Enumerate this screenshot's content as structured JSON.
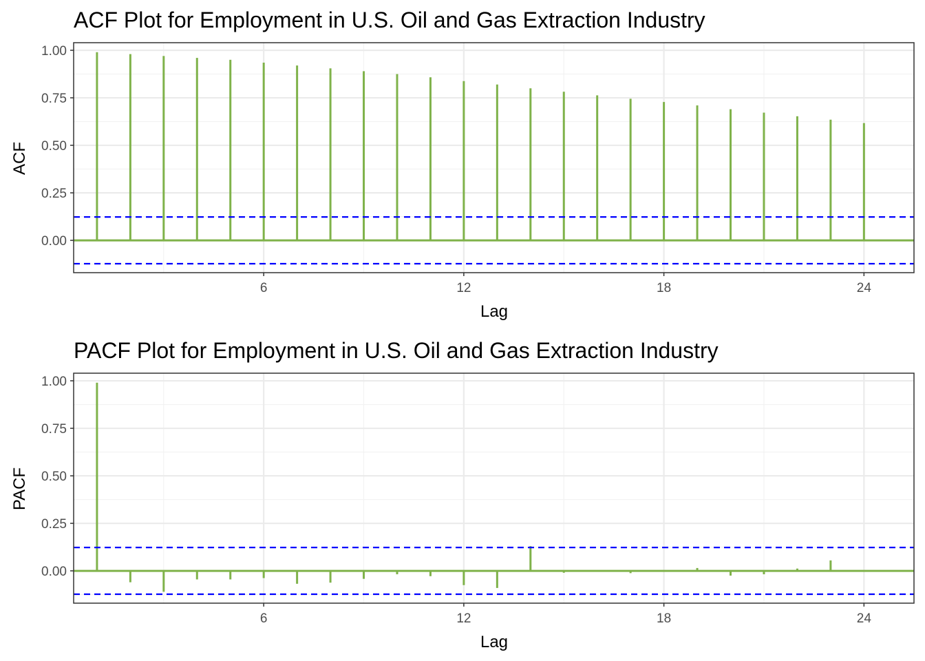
{
  "colors": {
    "bar": "#7fb24a",
    "confidence": "#0000ff",
    "grid_major": "#ebebeb",
    "grid_minor": "#f2f2f2",
    "panel_border": "#333333",
    "background": "#ffffff"
  },
  "chart_data": [
    {
      "type": "bar",
      "title": "ACF Plot for Employment in U.S. Oil and Gas Extraction Industry",
      "xlabel": "Lag",
      "ylabel": "ACF",
      "xlim": [
        0.3,
        25.5
      ],
      "ylim": [
        -0.17,
        1.04
      ],
      "xticks": [
        6,
        12,
        18,
        24
      ],
      "xtick_labels": [
        "6",
        "12",
        "18",
        "24"
      ],
      "yticks": [
        0,
        0.25,
        0.5,
        0.75,
        1
      ],
      "ytick_labels": [
        "0.00",
        "0.25",
        "0.50",
        "0.75",
        "1.00"
      ],
      "confidence_bound": 0.123,
      "grid": true,
      "x": [
        1,
        2,
        3,
        4,
        5,
        6,
        7,
        8,
        9,
        10,
        11,
        12,
        13,
        14,
        15,
        16,
        17,
        18,
        19,
        20,
        21,
        22,
        23,
        24
      ],
      "values": [
        0.99,
        0.98,
        0.97,
        0.96,
        0.95,
        0.935,
        0.92,
        0.905,
        0.89,
        0.875,
        0.858,
        0.838,
        0.82,
        0.8,
        0.782,
        0.763,
        0.745,
        0.728,
        0.71,
        0.69,
        0.672,
        0.653,
        0.635,
        0.617
      ]
    },
    {
      "type": "bar",
      "title": "PACF Plot for Employment in U.S. Oil and Gas Extraction Industry",
      "xlabel": "Lag",
      "ylabel": "PACF",
      "xlim": [
        0.3,
        25.5
      ],
      "ylim": [
        -0.17,
        1.04
      ],
      "xticks": [
        6,
        12,
        18,
        24
      ],
      "xtick_labels": [
        "6",
        "12",
        "18",
        "24"
      ],
      "yticks": [
        0,
        0.25,
        0.5,
        0.75,
        1
      ],
      "ytick_labels": [
        "0.00",
        "0.25",
        "0.50",
        "0.75",
        "1.00"
      ],
      "confidence_bound": 0.123,
      "grid": true,
      "x": [
        1,
        2,
        3,
        4,
        5,
        6,
        7,
        8,
        9,
        10,
        11,
        12,
        13,
        14,
        15,
        16,
        17,
        18,
        19,
        20,
        21,
        22,
        23,
        24
      ],
      "values": [
        0.99,
        -0.06,
        -0.11,
        -0.045,
        -0.045,
        -0.038,
        -0.068,
        -0.062,
        -0.042,
        -0.018,
        -0.028,
        -0.075,
        -0.09,
        0.13,
        -0.01,
        0.0,
        -0.012,
        0.0,
        0.015,
        -0.025,
        -0.018,
        0.012,
        0.055,
        0.0
      ]
    }
  ]
}
